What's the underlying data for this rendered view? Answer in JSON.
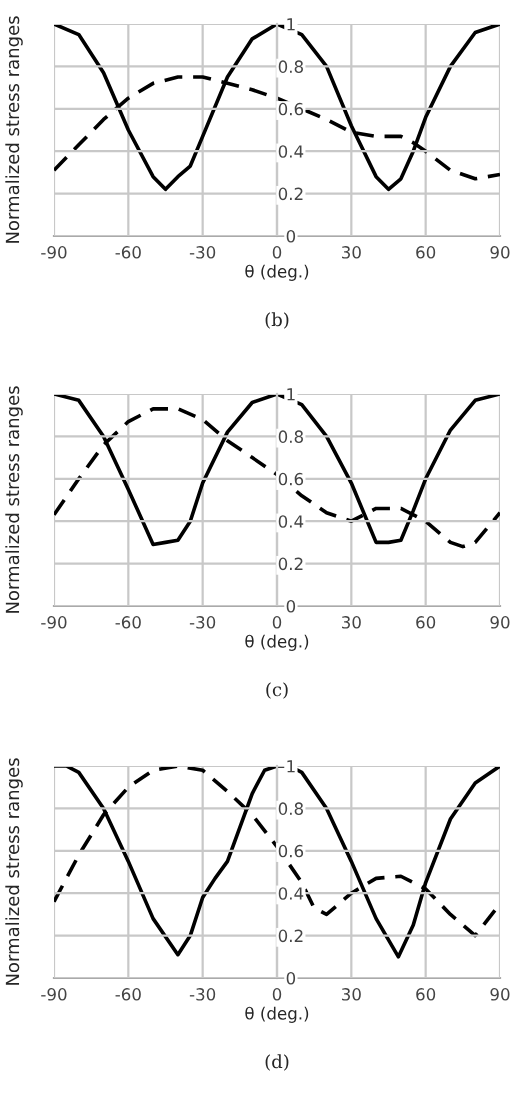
{
  "chart_data": [
    {
      "type": "line",
      "xlabel": "θ (deg.)",
      "ylabel": "Normalized stress ranges",
      "xlim": [
        -90,
        90
      ],
      "ylim": [
        0,
        1
      ],
      "xticks": [
        -90,
        -60,
        -30,
        0,
        30,
        60,
        90
      ],
      "yticks": [
        0,
        0.2,
        0.4,
        0.6,
        0.8,
        1
      ],
      "grid": true,
      "legend": false,
      "annotations": [
        "(b)"
      ],
      "series": [
        {
          "color": "#000000",
          "line_style": "solid",
          "x": [
            -90,
            -80,
            -70,
            -60,
            -50,
            -45,
            -40,
            -35,
            -30,
            -20,
            -10,
            0,
            10,
            20,
            30,
            40,
            45,
            50,
            55,
            60,
            70,
            80,
            90
          ],
          "values": [
            1,
            0.95,
            0.77,
            0.5,
            0.28,
            0.22,
            0.28,
            0.33,
            0.47,
            0.75,
            0.93,
            1,
            0.95,
            0.8,
            0.52,
            0.28,
            0.22,
            0.27,
            0.4,
            0.56,
            0.8,
            0.96,
            1
          ]
        },
        {
          "color": "#000000",
          "line_style": "dashed",
          "x": [
            -90,
            -80,
            -70,
            -60,
            -50,
            -40,
            -30,
            -20,
            -10,
            0,
            10,
            20,
            30,
            40,
            50,
            55,
            60,
            70,
            80,
            90
          ],
          "values": [
            0.31,
            0.43,
            0.55,
            0.65,
            0.72,
            0.75,
            0.75,
            0.72,
            0.69,
            0.65,
            0.6,
            0.55,
            0.49,
            0.47,
            0.47,
            0.44,
            0.4,
            0.31,
            0.27,
            0.29
          ]
        }
      ]
    },
    {
      "type": "line",
      "xlabel": "θ (deg.)",
      "ylabel": "Normalized stress ranges",
      "xlim": [
        -90,
        90
      ],
      "ylim": [
        0,
        1
      ],
      "xticks": [
        -90,
        -60,
        -30,
        0,
        30,
        60,
        90
      ],
      "yticks": [
        0,
        0.2,
        0.4,
        0.6,
        0.8,
        1
      ],
      "grid": true,
      "legend": false,
      "annotations": [
        "(c)"
      ],
      "series": [
        {
          "color": "#000000",
          "line_style": "solid",
          "x": [
            -90,
            -80,
            -70,
            -60,
            -50,
            -45,
            -40,
            -35,
            -30,
            -20,
            -10,
            0,
            10,
            20,
            30,
            40,
            45,
            50,
            55,
            60,
            70,
            80,
            90
          ],
          "values": [
            1,
            0.97,
            0.8,
            0.55,
            0.29,
            0.3,
            0.31,
            0.4,
            0.58,
            0.82,
            0.96,
            1,
            0.95,
            0.8,
            0.58,
            0.3,
            0.3,
            0.31,
            0.45,
            0.6,
            0.83,
            0.97,
            1
          ]
        },
        {
          "color": "#000000",
          "line_style": "dashed",
          "x": [
            -90,
            -80,
            -70,
            -60,
            -50,
            -40,
            -30,
            -20,
            -10,
            0,
            10,
            20,
            30,
            40,
            50,
            60,
            70,
            75,
            80,
            90
          ],
          "values": [
            0.43,
            0.6,
            0.76,
            0.87,
            0.93,
            0.93,
            0.88,
            0.78,
            0.7,
            0.62,
            0.52,
            0.44,
            0.4,
            0.46,
            0.46,
            0.4,
            0.3,
            0.28,
            0.3,
            0.44
          ]
        }
      ]
    },
    {
      "type": "line",
      "xlabel": "θ (deg.)",
      "ylabel": "Normalized stress ranges",
      "xlim": [
        -90,
        90
      ],
      "ylim": [
        0,
        1
      ],
      "xticks": [
        -90,
        -60,
        -30,
        0,
        30,
        60,
        90
      ],
      "yticks": [
        0,
        0.2,
        0.4,
        0.6,
        0.8,
        1
      ],
      "grid": true,
      "legend": false,
      "annotations": [
        "(d)"
      ],
      "series": [
        {
          "color": "#000000",
          "line_style": "solid",
          "x": [
            -90,
            -85,
            -80,
            -70,
            -60,
            -50,
            -40,
            -35,
            -30,
            -25,
            -20,
            -10,
            -5,
            0,
            5,
            10,
            20,
            30,
            40,
            49,
            55,
            60,
            70,
            80,
            90
          ],
          "values": [
            1,
            1,
            0.97,
            0.8,
            0.55,
            0.28,
            0.11,
            0.2,
            0.38,
            0.47,
            0.55,
            0.87,
            0.98,
            1,
            1,
            0.97,
            0.8,
            0.55,
            0.28,
            0.1,
            0.25,
            0.45,
            0.75,
            0.92,
            1
          ]
        },
        {
          "color": "#000000",
          "line_style": "dashed",
          "x": [
            -90,
            -80,
            -70,
            -60,
            -50,
            -40,
            -30,
            -20,
            -10,
            0,
            10,
            15,
            20,
            30,
            40,
            50,
            60,
            70,
            80,
            90
          ],
          "values": [
            0.36,
            0.58,
            0.77,
            0.9,
            0.98,
            1,
            0.98,
            0.88,
            0.77,
            0.62,
            0.45,
            0.33,
            0.3,
            0.4,
            0.47,
            0.48,
            0.42,
            0.3,
            0.2,
            0.35
          ]
        }
      ]
    }
  ]
}
